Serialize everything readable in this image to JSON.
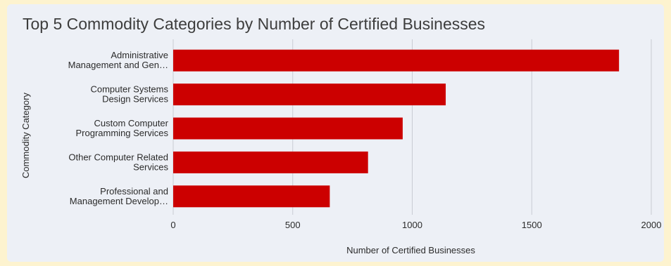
{
  "chart_data": {
    "type": "bar",
    "orientation": "horizontal",
    "title": "Top 5 Commodity Categories by Number of Certified Businesses",
    "xlabel": "Number of Certified Businesses",
    "ylabel": "Commodity Category",
    "categories": [
      [
        "Administrative",
        "Management and Gen…"
      ],
      [
        "Computer Systems",
        "Design Services"
      ],
      [
        "Custom Computer",
        "Programming Services"
      ],
      [
        "Other Computer Related",
        "Services"
      ],
      [
        "Professional and",
        "Management Develop…"
      ]
    ],
    "values": [
      1865,
      1140,
      960,
      815,
      655
    ],
    "xlim": [
      0,
      2000
    ],
    "xticks": [
      0,
      500,
      1000,
      1500,
      2000
    ],
    "grid": "vertical",
    "bar_color": "#cc0000"
  }
}
